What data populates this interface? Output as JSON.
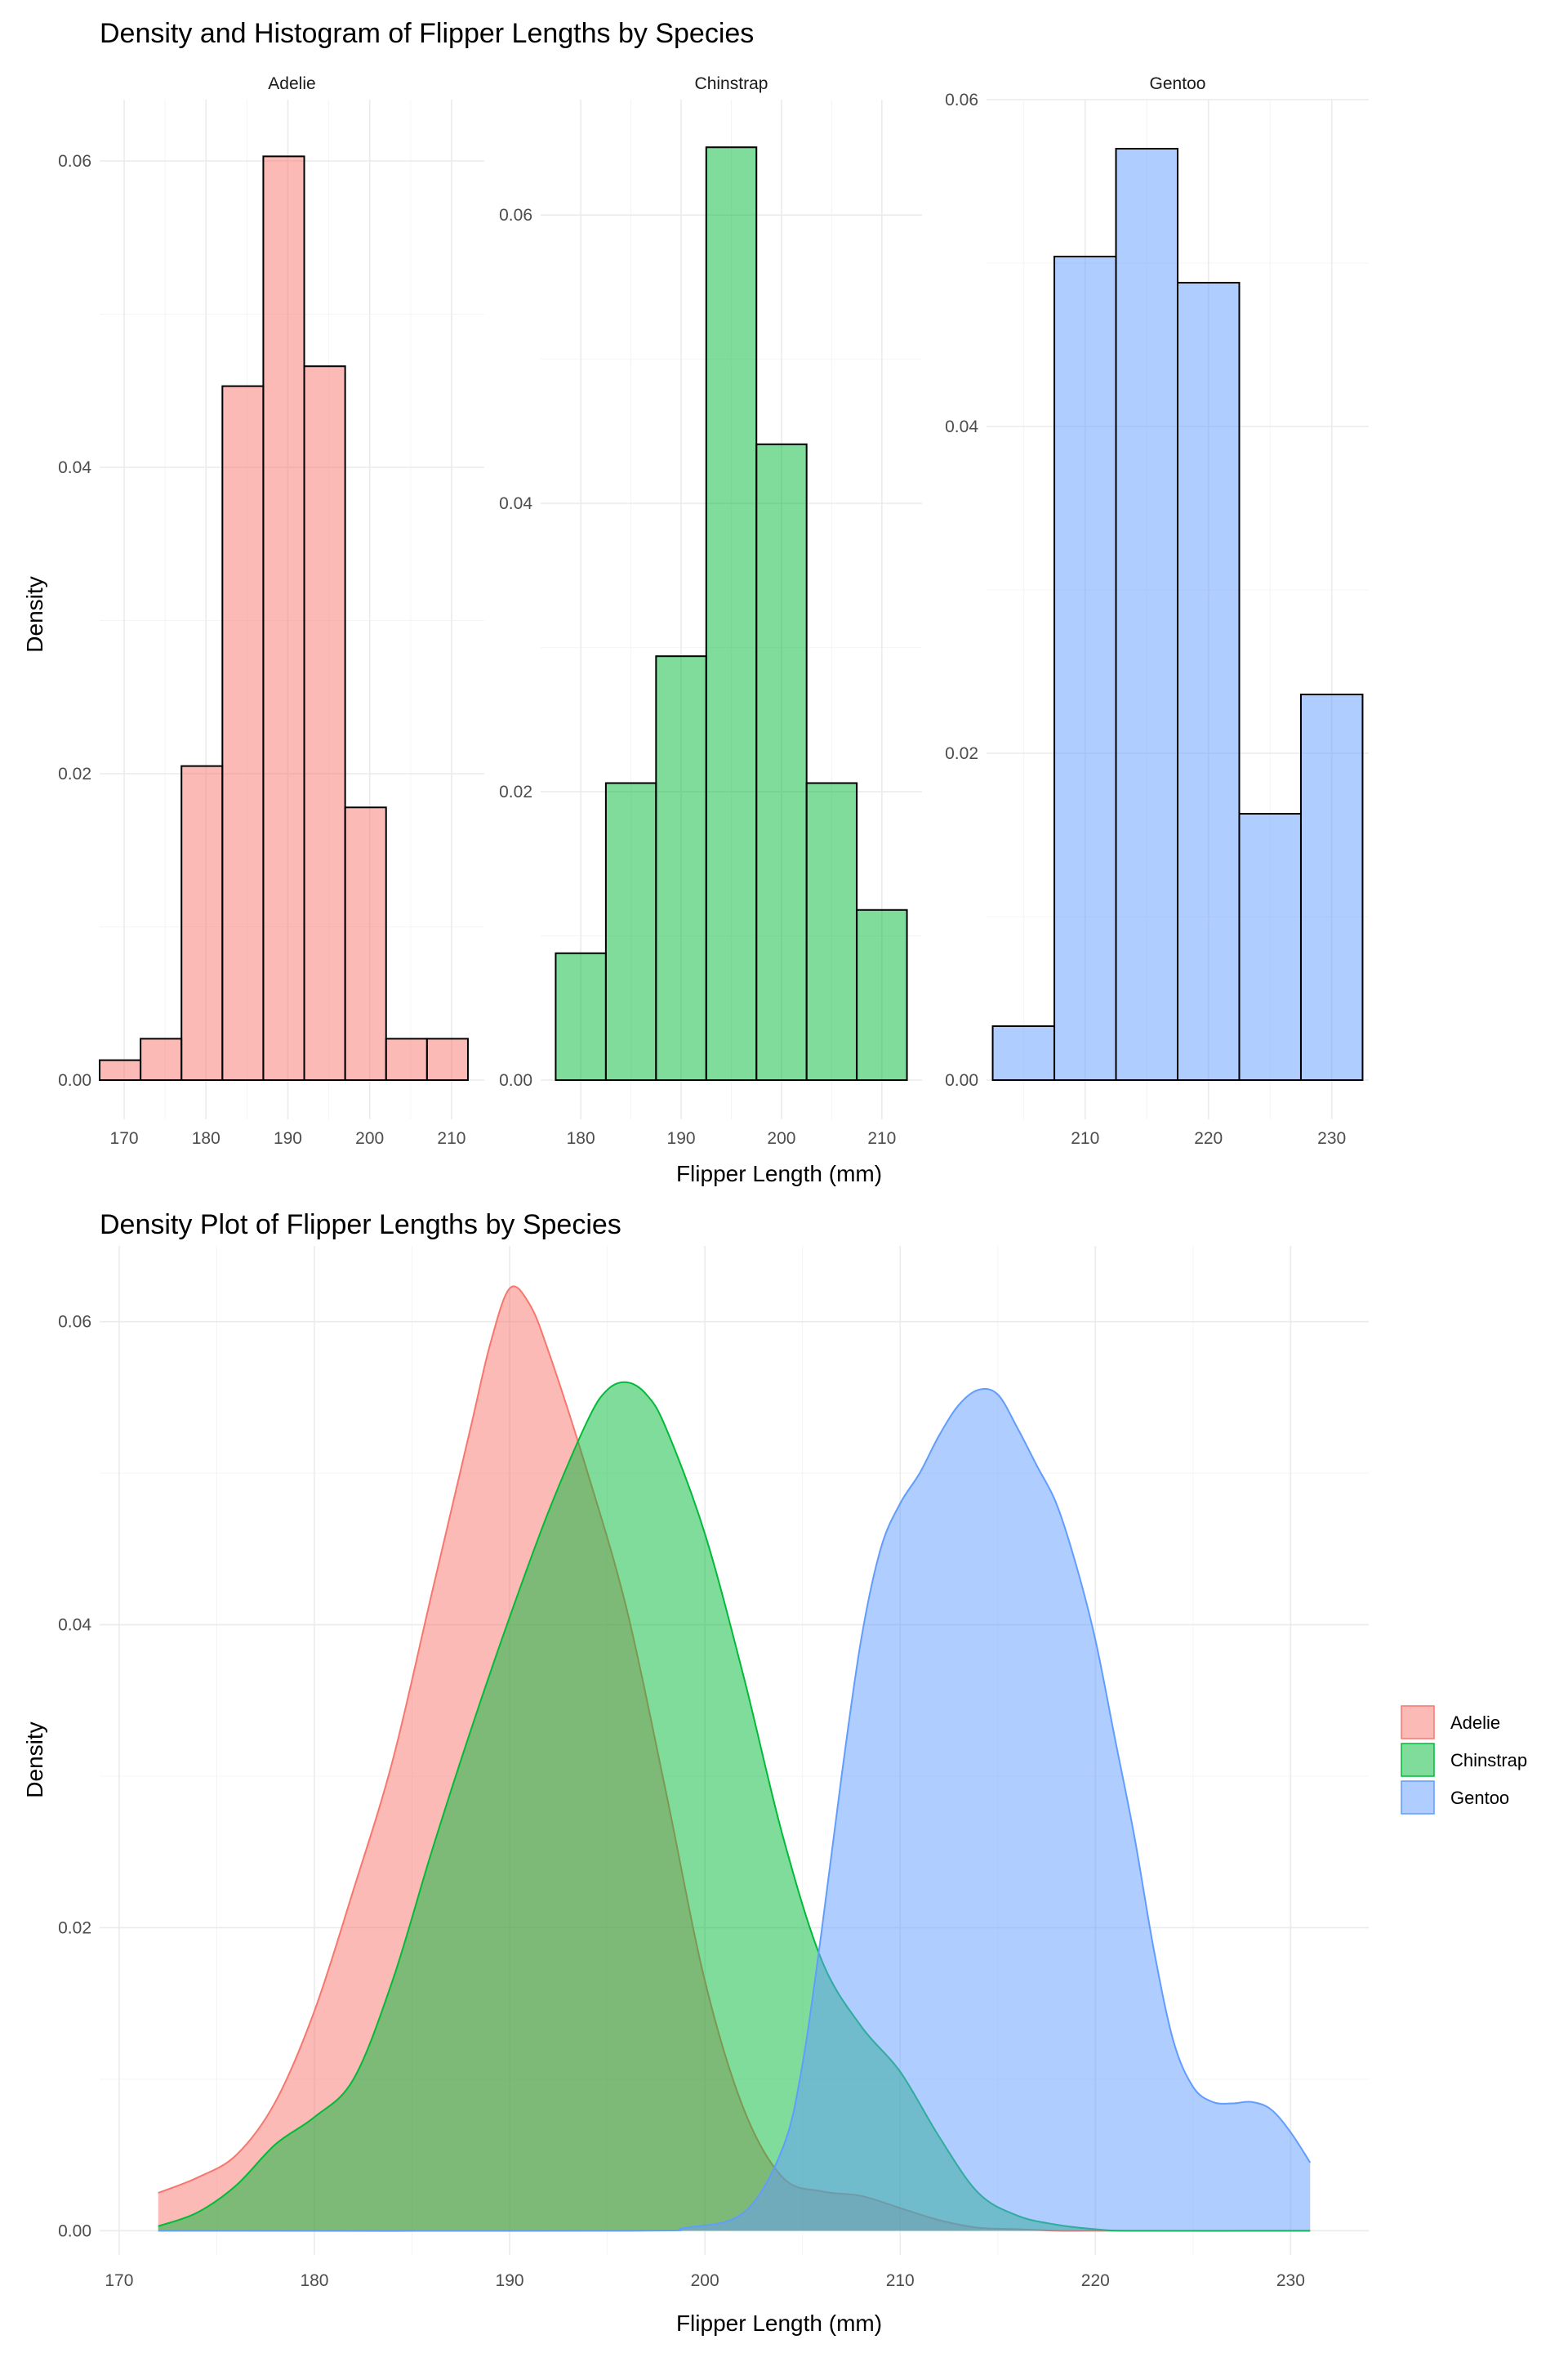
{
  "colors": {
    "adelie": "#F8766D",
    "chinstrap": "#00BA38",
    "gentoo": "#619CFF"
  },
  "chart_data": [
    {
      "type": "bar",
      "title": "Density and Histogram of Flipper Lengths by Species",
      "xlabel": "Flipper Length (mm)",
      "ylabel": "Density",
      "panels": [
        {
          "name": "Adelie",
          "xlim": [
            167,
            214
          ],
          "ylim": [
            0,
            0.064
          ],
          "xticks": [
            170,
            180,
            190,
            200,
            210
          ],
          "yticks": [
            0,
            0.02,
            0.04,
            0.06
          ],
          "ytick_labels": [
            "0.00",
            "0.02",
            "0.04",
            "0.06"
          ],
          "bin_edges": [
            167,
            172,
            177,
            182,
            187,
            192,
            197,
            202,
            207,
            212
          ],
          "values": [
            0.0013,
            0.0027,
            0.0205,
            0.0453,
            0.0603,
            0.0466,
            0.0178,
            0.0027,
            0.0027
          ]
        },
        {
          "name": "Chinstrap",
          "xlim": [
            176,
            214
          ],
          "ylim": [
            0,
            0.068
          ],
          "xticks": [
            180,
            190,
            200,
            210
          ],
          "yticks": [
            0,
            0.02,
            0.04,
            0.06
          ],
          "ytick_labels": [
            "0.00",
            "0.02",
            "0.04",
            "0.06"
          ],
          "bin_edges": [
            177.5,
            182.5,
            187.5,
            192.5,
            197.5,
            202.5,
            207.5,
            212.5
          ],
          "values": [
            0.0088,
            0.0206,
            0.0294,
            0.0647,
            0.0441,
            0.0206,
            0.0118
          ]
        },
        {
          "name": "Gentoo",
          "xlim": [
            202,
            233
          ],
          "ylim": [
            0,
            0.06
          ],
          "xticks": [
            210,
            220,
            230
          ],
          "yticks": [
            0,
            0.02,
            0.04,
            0.06
          ],
          "ytick_labels": [
            "0.00",
            "0.02",
            "0.04",
            "0.06"
          ],
          "bin_edges": [
            202.5,
            207.5,
            212.5,
            217.5,
            222.5,
            227.5,
            232.5
          ],
          "values": [
            0.0033,
            0.0504,
            0.057,
            0.0488,
            0.0163,
            0.0236
          ]
        }
      ]
    },
    {
      "type": "area",
      "title": "Density Plot of Flipper Lengths by Species",
      "xlabel": "Flipper Length (mm)",
      "ylabel": "Density",
      "xlim": [
        169,
        234
      ],
      "ylim": [
        -0.0016,
        0.065
      ],
      "xticks": [
        170,
        180,
        190,
        200,
        210,
        220,
        230
      ],
      "yticks": [
        0,
        0.02,
        0.04,
        0.06
      ],
      "ytick_labels": [
        "0.00",
        "0.02",
        "0.04",
        "0.06"
      ],
      "legend_position": "right",
      "series": [
        {
          "name": "Adelie",
          "x": [
            172,
            174,
            176,
            178,
            180,
            182,
            184,
            186,
            188,
            189,
            190,
            191,
            192,
            194,
            196,
            198,
            200,
            202,
            204,
            206,
            208,
            210,
            212,
            214,
            216,
            218,
            220,
            231
          ],
          "y": [
            0.0025,
            0.0035,
            0.005,
            0.0085,
            0.0145,
            0.0225,
            0.031,
            0.042,
            0.053,
            0.0585,
            0.0622,
            0.0612,
            0.058,
            0.05,
            0.041,
            0.029,
            0.0165,
            0.008,
            0.0035,
            0.0026,
            0.0023,
            0.0015,
            0.0007,
            0.0002,
            0.0001,
            0.0,
            0.0,
            0.0
          ]
        },
        {
          "name": "Chinstrap",
          "x": [
            172,
            174,
            176,
            178,
            180,
            182,
            184,
            186,
            188,
            190,
            192,
            194,
            195,
            196,
            197,
            198,
            200,
            202,
            204,
            206,
            208,
            210,
            212,
            214,
            216,
            218,
            220,
            222,
            231
          ],
          "y": [
            0.0003,
            0.0012,
            0.003,
            0.0057,
            0.0075,
            0.01,
            0.0165,
            0.025,
            0.033,
            0.0405,
            0.0475,
            0.0535,
            0.0555,
            0.056,
            0.0552,
            0.053,
            0.046,
            0.0365,
            0.026,
            0.0178,
            0.0135,
            0.0105,
            0.0062,
            0.0025,
            0.001,
            0.0004,
            0.0001,
            0.0,
            0.0
          ]
        },
        {
          "name": "Gentoo",
          "x": [
            172,
            196,
            199,
            202,
            204,
            205,
            206,
            207,
            208,
            209,
            210,
            211,
            212,
            213,
            214,
            215,
            216,
            217,
            218,
            219,
            220,
            221,
            222,
            223,
            224,
            225,
            226,
            227,
            228,
            229,
            230,
            231
          ],
          "y": [
            0.0,
            0.0,
            0.0002,
            0.0012,
            0.0055,
            0.011,
            0.02,
            0.03,
            0.039,
            0.045,
            0.048,
            0.05,
            0.0525,
            0.0545,
            0.0555,
            0.0552,
            0.053,
            0.0505,
            0.048,
            0.044,
            0.039,
            0.0325,
            0.026,
            0.0185,
            0.0125,
            0.0095,
            0.0085,
            0.0084,
            0.0085,
            0.008,
            0.0065,
            0.0045
          ]
        }
      ]
    }
  ]
}
